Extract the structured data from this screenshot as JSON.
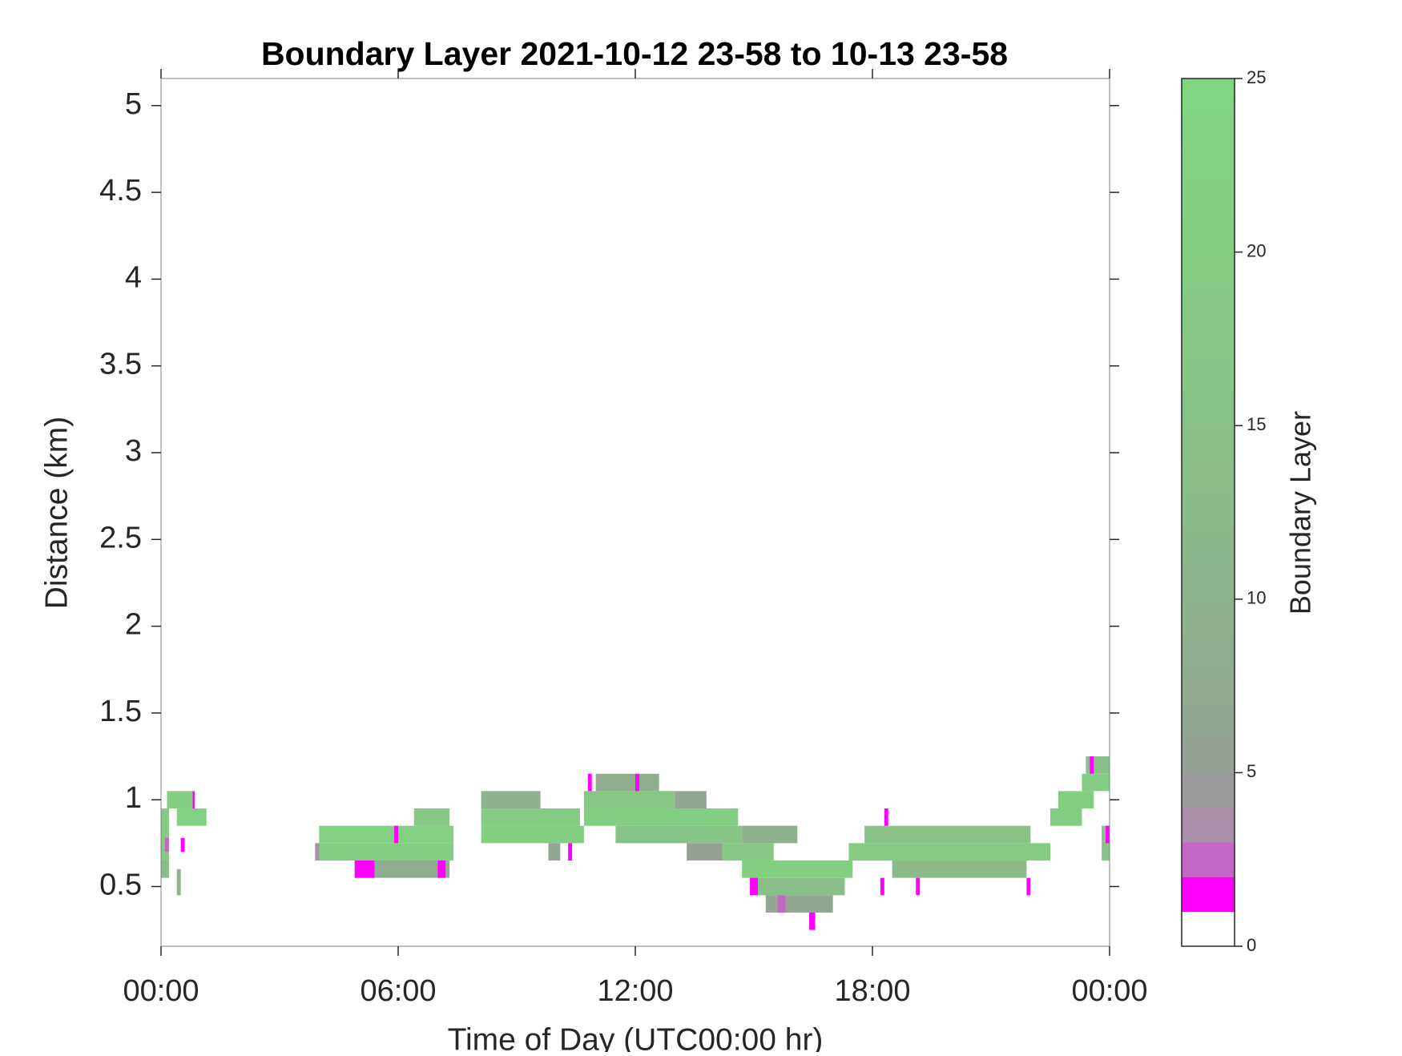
{
  "chart_data": {
    "type": "heatmap",
    "title": "Boundary Layer 2021-10-12 23-58 to 10-13 23-58",
    "x_label": "Time of Day (UTC00:00 hr)",
    "y_label": "Distance (km)",
    "colorbar_label": "Boundary Layer",
    "xlim": [
      0,
      24
    ],
    "xticks": [
      {
        "value": 0,
        "label": "00:00"
      },
      {
        "value": 6,
        "label": "06:00"
      },
      {
        "value": 12,
        "label": "12:00"
      },
      {
        "value": 18,
        "label": "18:00"
      },
      {
        "value": 24,
        "label": "00:00"
      }
    ],
    "ylim": [
      0.156,
      5.156
    ],
    "yticks": [
      0.5,
      1,
      1.5,
      2,
      2.5,
      3,
      3.5,
      4,
      4.5,
      5
    ],
    "clim": [
      0,
      25
    ],
    "cticks": [
      0,
      5,
      10,
      15,
      20,
      25
    ],
    "colormap": [
      "#ffffff",
      "#ff00ff",
      "#c466c4",
      "#a990a8",
      "#9c9a9c",
      "#95a195",
      "#93a593",
      "#92a992",
      "#90ad90",
      "#8fb18f",
      "#8eb48e",
      "#8cb78c",
      "#8bba8b",
      "#8abd8a",
      "#89c089",
      "#88c288",
      "#87c587",
      "#86c786",
      "#85c985",
      "#84cb84",
      "#83cd83",
      "#82cf82",
      "#82d182",
      "#81d381",
      "#80d580"
    ],
    "cells": [
      [
        0.0,
        0.2,
        0.55,
        0.65,
        12
      ],
      [
        0.0,
        0.2,
        0.65,
        0.95,
        18
      ],
      [
        0.15,
        0.85,
        0.95,
        1.05,
        20
      ],
      [
        0.4,
        1.15,
        0.85,
        0.95,
        22
      ],
      [
        0.4,
        0.5,
        0.45,
        0.6,
        10
      ],
      [
        0.1,
        0.2,
        0.7,
        0.78,
        2
      ],
      [
        0.5,
        0.6,
        0.7,
        0.78,
        1
      ],
      [
        0.8,
        0.85,
        0.95,
        1.05,
        1
      ],
      [
        3.9,
        7.4,
        0.65,
        0.75,
        20
      ],
      [
        4.0,
        7.4,
        0.75,
        0.85,
        22
      ],
      [
        6.4,
        7.3,
        0.85,
        0.95,
        18
      ],
      [
        4.9,
        7.3,
        0.55,
        0.65,
        8
      ],
      [
        4.9,
        5.4,
        0.55,
        0.65,
        1
      ],
      [
        7.0,
        7.2,
        0.55,
        0.65,
        1
      ],
      [
        5.9,
        6.0,
        0.75,
        0.85,
        1
      ],
      [
        3.9,
        4.0,
        0.65,
        0.75,
        3
      ],
      [
        8.1,
        10.7,
        0.75,
        0.85,
        21
      ],
      [
        8.1,
        10.6,
        0.85,
        0.95,
        19
      ],
      [
        8.1,
        9.6,
        0.95,
        1.05,
        9
      ],
      [
        9.8,
        10.1,
        0.65,
        0.75,
        6
      ],
      [
        10.3,
        10.4,
        0.65,
        0.75,
        1
      ],
      [
        10.7,
        13.0,
        0.95,
        1.05,
        17
      ],
      [
        10.7,
        14.6,
        0.85,
        0.95,
        21
      ],
      [
        11.5,
        14.7,
        0.75,
        0.85,
        16
      ],
      [
        11.0,
        12.6,
        1.05,
        1.15,
        8
      ],
      [
        10.8,
        10.9,
        1.05,
        1.15,
        1
      ],
      [
        12.0,
        12.1,
        1.05,
        1.15,
        1
      ],
      [
        13.0,
        13.8,
        0.95,
        1.05,
        6
      ],
      [
        13.3,
        14.2,
        0.65,
        0.75,
        5
      ],
      [
        14.2,
        15.5,
        0.65,
        0.75,
        18
      ],
      [
        14.7,
        17.5,
        0.55,
        0.65,
        21
      ],
      [
        15.0,
        17.3,
        0.45,
        0.55,
        14
      ],
      [
        15.3,
        17.0,
        0.35,
        0.45,
        6
      ],
      [
        16.4,
        16.55,
        0.25,
        0.35,
        1
      ],
      [
        15.6,
        15.8,
        0.35,
        0.45,
        2
      ],
      [
        14.9,
        15.1,
        0.45,
        0.55,
        1
      ],
      [
        14.7,
        16.1,
        0.75,
        0.85,
        9
      ],
      [
        17.4,
        22.5,
        0.65,
        0.75,
        19
      ],
      [
        17.8,
        22.0,
        0.75,
        0.85,
        15
      ],
      [
        18.5,
        21.9,
        0.55,
        0.65,
        12
      ],
      [
        18.2,
        18.3,
        0.45,
        0.55,
        1
      ],
      [
        19.1,
        19.2,
        0.45,
        0.55,
        1
      ],
      [
        21.9,
        22.0,
        0.45,
        0.55,
        1
      ],
      [
        18.3,
        18.4,
        0.85,
        0.95,
        1
      ],
      [
        22.5,
        23.3,
        0.85,
        0.95,
        20
      ],
      [
        22.7,
        23.6,
        0.95,
        1.05,
        21
      ],
      [
        23.3,
        24.0,
        1.05,
        1.15,
        19
      ],
      [
        23.4,
        24.0,
        1.15,
        1.25,
        14
      ],
      [
        23.5,
        23.6,
        1.15,
        1.25,
        1
      ],
      [
        23.8,
        24.0,
        0.65,
        0.85,
        15
      ],
      [
        23.9,
        24.0,
        0.75,
        0.85,
        1
      ]
    ]
  }
}
